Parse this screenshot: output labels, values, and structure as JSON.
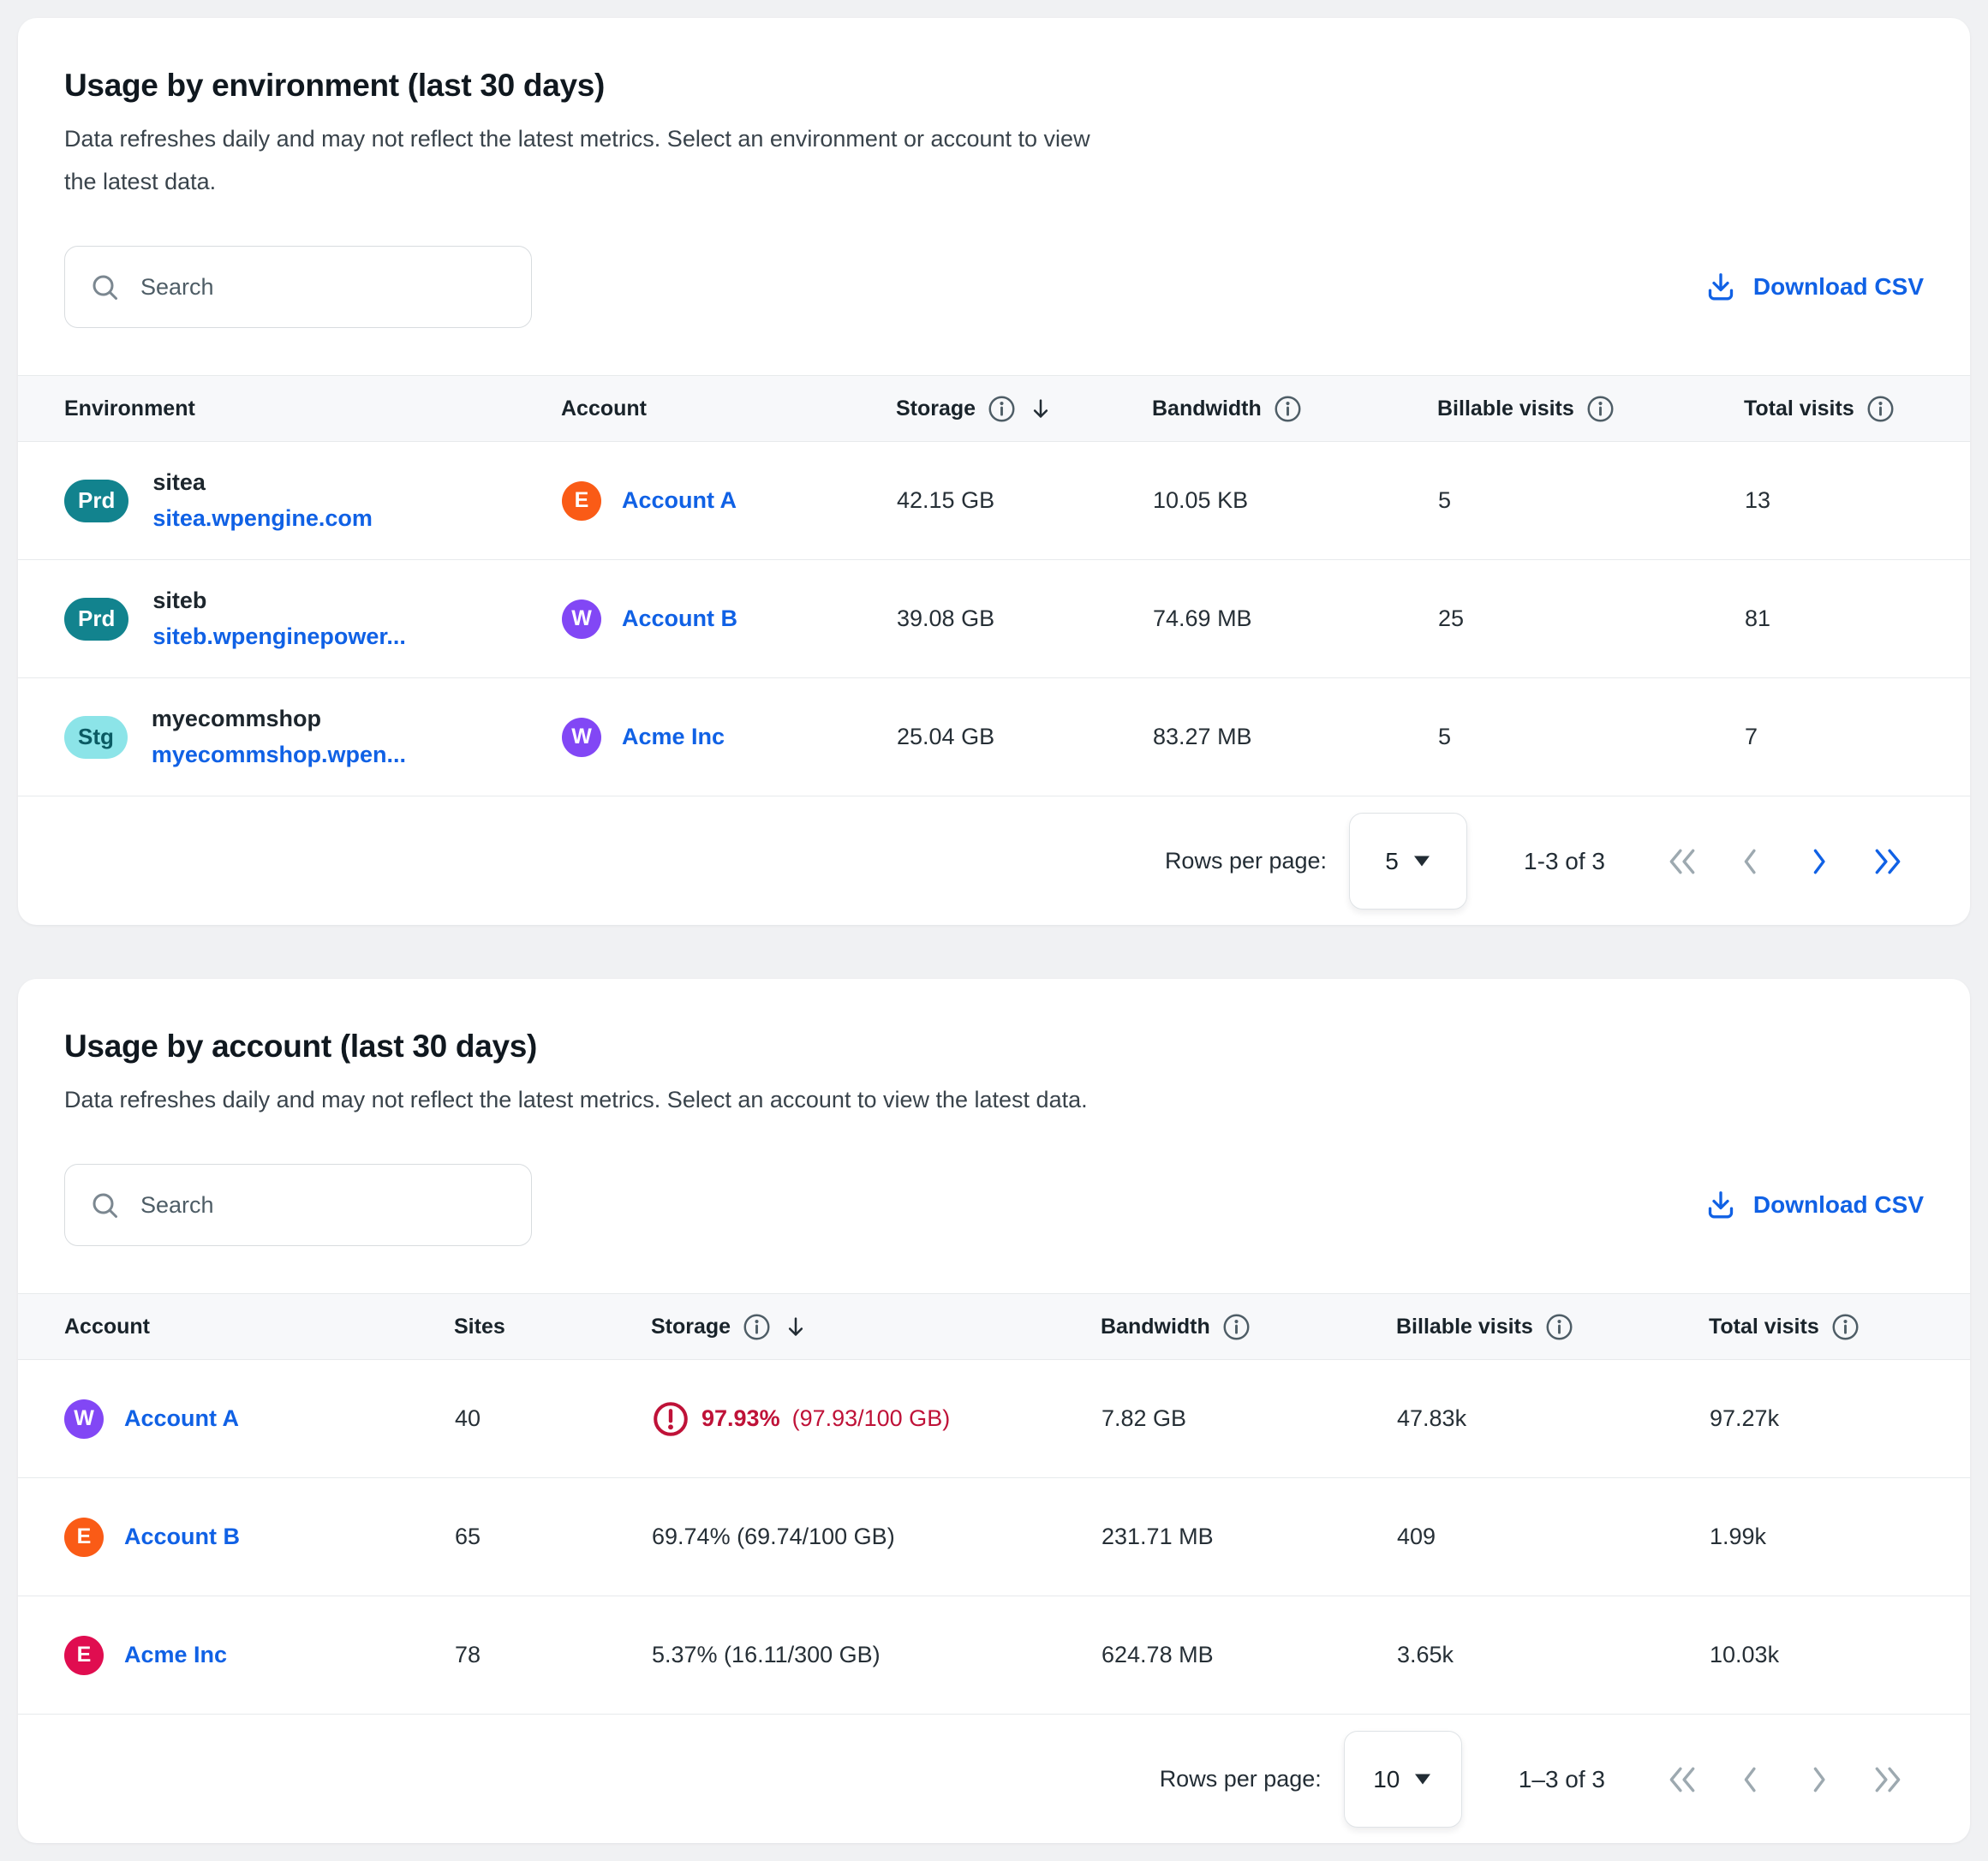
{
  "colors": {
    "link_blue": "#1061e5",
    "warning_red": "#bf1238",
    "prd_badge_teal": "#12838e",
    "stg_badge_cyan": "#8ce4e8",
    "avatar_orange": "#fa5b16",
    "avatar_purple": "#8247f5",
    "avatar_crimson": "#e00d50"
  },
  "env_panel": {
    "title": "Usage by environment (last 30 days)",
    "subtitle_lines": [
      "Data refreshes daily and may not reflect the latest metrics. Select an environment or account to view",
      "the latest data."
    ],
    "search_placeholder": "Search",
    "download_label": "Download CSV",
    "columns": [
      {
        "label": "Environment",
        "info": false,
        "sort": false
      },
      {
        "label": "Account",
        "info": false,
        "sort": false
      },
      {
        "label": "Storage",
        "info": true,
        "sort": true
      },
      {
        "label": "Bandwidth",
        "info": true,
        "sort": false
      },
      {
        "label": "Billable visits",
        "info": true,
        "sort": false
      },
      {
        "label": "Total visits",
        "info": true,
        "sort": false
      }
    ],
    "rows": [
      {
        "env_badge": "Prd",
        "env_badge_style": "prd",
        "env_name": "sitea",
        "env_domain": "sitea.wpengine.com",
        "account_name": "Account A",
        "avatar_letter": "E",
        "avatar_style": "orange",
        "storage": "42.15 GB",
        "bandwidth": "10.05 KB",
        "billable_visits": "5",
        "total_visits": "13"
      },
      {
        "env_badge": "Prd",
        "env_badge_style": "prd",
        "env_name": "siteb",
        "env_domain": "siteb.wpenginepower...",
        "account_name": "Account B",
        "avatar_letter": "W",
        "avatar_style": "purple",
        "storage": "39.08 GB",
        "bandwidth": "74.69 MB",
        "billable_visits": "25",
        "total_visits": "81"
      },
      {
        "env_badge": "Stg",
        "env_badge_style": "stg",
        "env_name": "myecommshop",
        "env_domain": "myecommshop.wpen...",
        "account_name": "Acme Inc",
        "avatar_letter": "W",
        "avatar_style": "purple",
        "storage": "25.04 GB",
        "bandwidth": "83.27 MB",
        "billable_visits": "5",
        "total_visits": "7"
      }
    ],
    "pagination": {
      "rows_per_page_label": "Rows per page:",
      "rows_per_page_value": "5",
      "range_text": "1-3 of 3",
      "nav": {
        "first_enabled": false,
        "prev_enabled": false,
        "next_enabled": true,
        "last_enabled": true
      }
    }
  },
  "account_panel": {
    "title": "Usage by account (last 30 days)",
    "subtitle_lines": [
      "Data refreshes daily and may not reflect the latest metrics. Select an account to view the latest data."
    ],
    "search_placeholder": "Search",
    "download_label": "Download CSV",
    "columns": [
      {
        "label": "Account",
        "info": false,
        "sort": false
      },
      {
        "label": "Sites",
        "info": false,
        "sort": false
      },
      {
        "label": "Storage",
        "info": true,
        "sort": true
      },
      {
        "label": "Bandwidth",
        "info": true,
        "sort": false
      },
      {
        "label": "Billable visits",
        "info": true,
        "sort": false
      },
      {
        "label": "Total visits",
        "info": true,
        "sort": false
      }
    ],
    "rows": [
      {
        "account_name": "Account A",
        "avatar_letter": "W",
        "avatar_style": "purple",
        "sites": "40",
        "storage_alert": true,
        "storage_pct": "97.93%",
        "storage_detail": "(97.93/100 GB)",
        "bandwidth": "7.82 GB",
        "billable_visits": "47.83k",
        "total_visits": "97.27k"
      },
      {
        "account_name": "Account B",
        "avatar_letter": "E",
        "avatar_style": "orange",
        "sites": "65",
        "storage_alert": false,
        "storage_pct": "69.74%",
        "storage_detail": "(69.74/100 GB)",
        "bandwidth": "231.71 MB",
        "billable_visits": "409",
        "total_visits": "1.99k"
      },
      {
        "account_name": "Acme Inc",
        "avatar_letter": "E",
        "avatar_style": "crimson",
        "sites": "78",
        "storage_alert": false,
        "storage_pct": "5.37%",
        "storage_detail": "(16.11/300 GB)",
        "bandwidth": "624.78 MB",
        "billable_visits": "3.65k",
        "total_visits": "10.03k"
      }
    ],
    "pagination": {
      "rows_per_page_label": "Rows per page:",
      "rows_per_page_value": "10",
      "range_text": "1–3 of 3",
      "nav": {
        "first_enabled": false,
        "prev_enabled": false,
        "next_enabled": false,
        "last_enabled": false
      }
    }
  }
}
